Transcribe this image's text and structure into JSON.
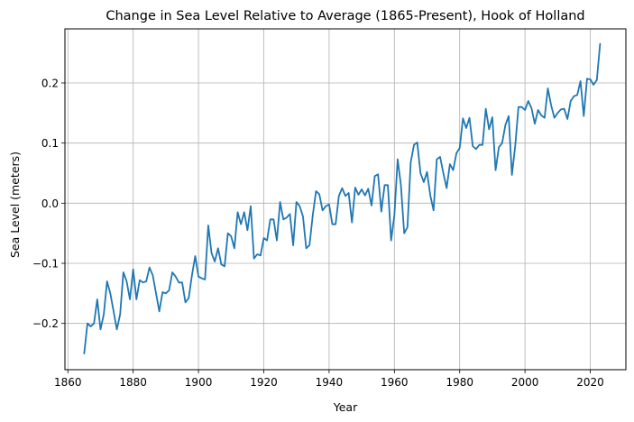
{
  "chart_data": {
    "type": "line",
    "title": "Change in Sea Level Relative to Average (1865-Present), Hook of Holland",
    "xlabel": "Year",
    "ylabel": "Sea Level (meters)",
    "xlim": [
      1859.1,
      2030.9
    ],
    "ylim": [
      -0.277,
      0.29
    ],
    "xticks": [
      1860,
      1880,
      1900,
      1920,
      1940,
      1960,
      1980,
      2000,
      2020
    ],
    "yticks": [
      -0.2,
      -0.1,
      0.0,
      0.1,
      0.2
    ],
    "ytick_labels": [
      "−0.2",
      "−0.1",
      "0.0",
      "0.1",
      "0.2"
    ],
    "grid": true,
    "line_color": "#1f77b4",
    "series": [
      {
        "x_start": 1865,
        "values": [
          -0.25,
          -0.2,
          -0.205,
          -0.2,
          -0.16,
          -0.21,
          -0.185,
          -0.13,
          -0.15,
          -0.18,
          -0.21,
          -0.185,
          -0.115,
          -0.13,
          -0.16,
          -0.11,
          -0.16,
          -0.128,
          -0.132,
          -0.13,
          -0.107,
          -0.12,
          -0.15,
          -0.18,
          -0.148,
          -0.15,
          -0.145,
          -0.115,
          -0.122,
          -0.132,
          -0.132,
          -0.165,
          -0.158,
          -0.12,
          -0.088,
          -0.122,
          -0.125,
          -0.127,
          -0.037,
          -0.083,
          -0.097,
          -0.075,
          -0.102,
          -0.105,
          -0.05,
          -0.055,
          -0.075,
          -0.015,
          -0.035,
          -0.015,
          -0.045,
          -0.005,
          -0.092,
          -0.085,
          -0.087,
          -0.058,
          -0.062,
          -0.027,
          -0.027,
          -0.062,
          0.002,
          -0.027,
          -0.024,
          -0.018,
          -0.07,
          0.002,
          -0.005,
          -0.022,
          -0.075,
          -0.07,
          -0.02,
          0.02,
          0.015,
          -0.012,
          -0.005,
          -0.002,
          -0.035,
          -0.035,
          0.012,
          0.025,
          0.012,
          0.017,
          -0.032,
          0.026,
          0.014,
          0.023,
          0.013,
          0.024,
          -0.004,
          0.045,
          0.048,
          -0.014,
          0.03,
          0.03,
          -0.062,
          -0.02,
          0.073,
          0.03,
          -0.05,
          -0.04,
          0.068,
          0.097,
          0.101,
          0.05,
          0.035,
          0.052,
          0.013,
          -0.012,
          0.073,
          0.077,
          0.05,
          0.025,
          0.065,
          0.055,
          0.083,
          0.092,
          0.141,
          0.125,
          0.142,
          0.095,
          0.09,
          0.097,
          0.097,
          0.157,
          0.123,
          0.143,
          0.055,
          0.093,
          0.1,
          0.13,
          0.145,
          0.047,
          0.095,
          0.16,
          0.16,
          0.155,
          0.17,
          0.158,
          0.132,
          0.155,
          0.146,
          0.142,
          0.191,
          0.163,
          0.142,
          0.15,
          0.156,
          0.157,
          0.14,
          0.17,
          0.178,
          0.18,
          0.203,
          0.145,
          0.207,
          0.206,
          0.197,
          0.205,
          0.265
        ]
      }
    ]
  }
}
